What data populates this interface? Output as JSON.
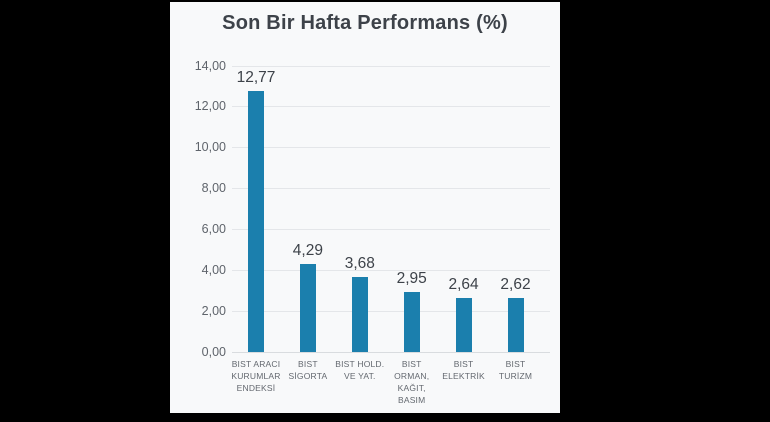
{
  "colors": {
    "page_background": "#000000",
    "card_background": "#f8f9fa",
    "bar": "#1b7fad",
    "gridline": "#e4e6e9",
    "axis_line": "#d9dcdf",
    "title_text": "#3d4249",
    "value_label_text": "#3d4249",
    "ytick_text": "#5f646b",
    "category_text": "#63686f"
  },
  "chart_data": {
    "type": "bar",
    "title": "Son Bir Hafta Performans (%)",
    "xlabel": "",
    "ylabel": "",
    "grid": true,
    "legend_position": "none",
    "ylim": [
      0,
      14
    ],
    "yticks": [
      {
        "v": 0,
        "label": "0,00"
      },
      {
        "v": 2,
        "label": "2,00"
      },
      {
        "v": 4,
        "label": "4,00"
      },
      {
        "v": 6,
        "label": "6,00"
      },
      {
        "v": 8,
        "label": "8,00"
      },
      {
        "v": 10,
        "label": "10,00"
      },
      {
        "v": 12,
        "label": "12,00"
      },
      {
        "v": 14,
        "label": "14,00"
      }
    ],
    "categories": [
      "BIST ARACI KURUMLAR ENDEKSİ",
      "BIST SİGORTA",
      "BIST HOLD. VE YAT.",
      "BIST ORMAN, KAĞIT, BASIM",
      "BIST ELEKTRİK",
      "BIST TURİZM"
    ],
    "category_lines": [
      [
        "BIST ARACI",
        "KURUMLAR",
        "ENDEKSİ"
      ],
      [
        "BIST",
        "SİGORTA"
      ],
      [
        "BIST HOLD.",
        "VE YAT."
      ],
      [
        "BIST",
        "ORMAN,",
        "KAĞIT,",
        "BASIM"
      ],
      [
        "BIST",
        "ELEKTRİK"
      ],
      [
        "BIST",
        "TURİZM"
      ]
    ],
    "values": [
      12.77,
      4.29,
      3.68,
      2.95,
      2.64,
      2.62
    ],
    "value_labels": [
      "12,77",
      "4,29",
      "3,68",
      "2,95",
      "2,64",
      "2,62"
    ]
  }
}
